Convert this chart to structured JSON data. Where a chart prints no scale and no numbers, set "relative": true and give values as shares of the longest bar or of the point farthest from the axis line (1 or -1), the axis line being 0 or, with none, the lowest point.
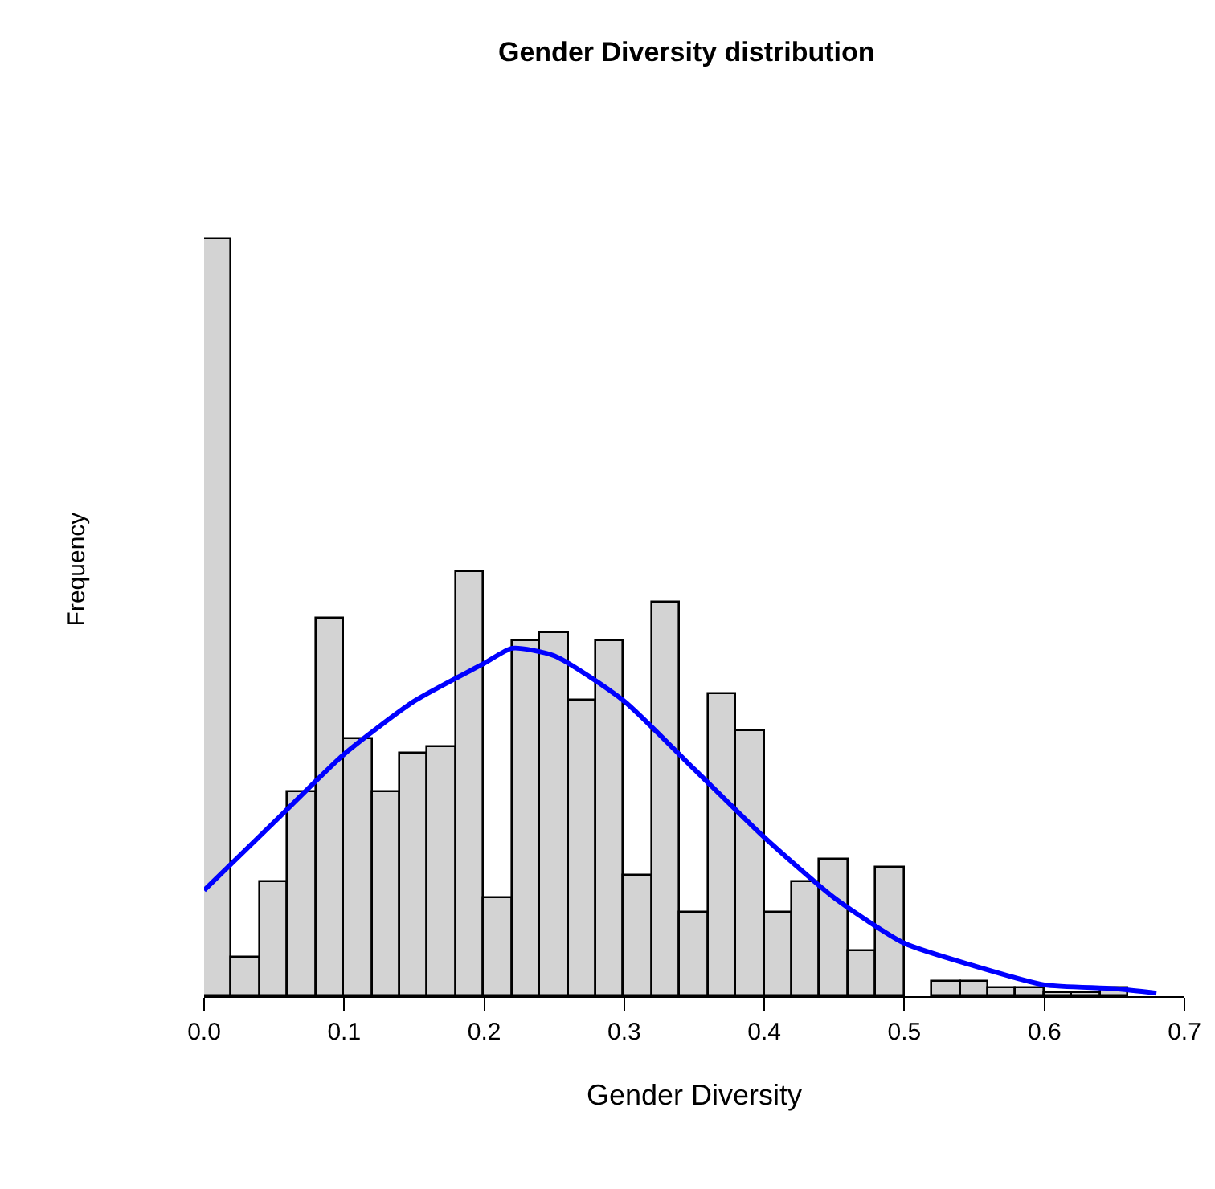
{
  "chart_data": {
    "type": "histogram",
    "title": "Gender Diversity distribution",
    "xlabel": "Gender Diversity",
    "ylabel": "Frequency",
    "relative": true,
    "xlim": [
      0,
      0.7
    ],
    "xticks": [
      {
        "value": 0,
        "label": "0.0"
      },
      0.1,
      0.2,
      0.3,
      0.4,
      0.5,
      0.6,
      0.7
    ],
    "grid": false,
    "marker": "none",
    "line_style": "solid",
    "series": [
      {
        "type": "histogram",
        "color": "#d3d3d3",
        "bins": [
          0,
          0.02,
          0.04,
          0.06,
          0.08,
          0.1,
          0.12,
          0.14,
          0.16,
          0.18,
          0.2,
          0.22,
          0.24,
          0.26,
          0.28,
          0.3,
          0.32,
          0.34,
          0.36,
          0.38,
          0.4,
          0.42,
          0.44,
          0.46,
          0.48,
          0.5,
          0.52,
          0.54,
          0.56,
          0.58,
          0.6,
          0.62,
          0.64,
          0.66
        ],
        "values": [
          1,
          0.05,
          0.15,
          0.27,
          0.5,
          0.34,
          0.27,
          0.32,
          0.33,
          0.56,
          0.13,
          0.47,
          0.48,
          0.39,
          0.47,
          0.16,
          0.52,
          0.11,
          0.4,
          0.35,
          0.11,
          0.15,
          0.18,
          0.06,
          0.17,
          0,
          0.02,
          0.02,
          0.01,
          0.01,
          0.005,
          0.005,
          0.01
        ]
      },
      {
        "type": "line",
        "color": "#0000ff",
        "x": [
          0,
          0.05,
          0.1,
          0.15,
          0.2,
          0.22,
          0.25,
          0.3,
          0.35,
          0.4,
          0.45,
          0.5,
          0.55,
          0.6,
          0.65,
          0.68
        ],
        "values": [
          0.14,
          0.23,
          0.32,
          0.39,
          0.44,
          0.46,
          0.45,
          0.39,
          0.3,
          0.21,
          0.13,
          0.07,
          0.04,
          0.015,
          0.01,
          0.004
        ]
      }
    ]
  }
}
